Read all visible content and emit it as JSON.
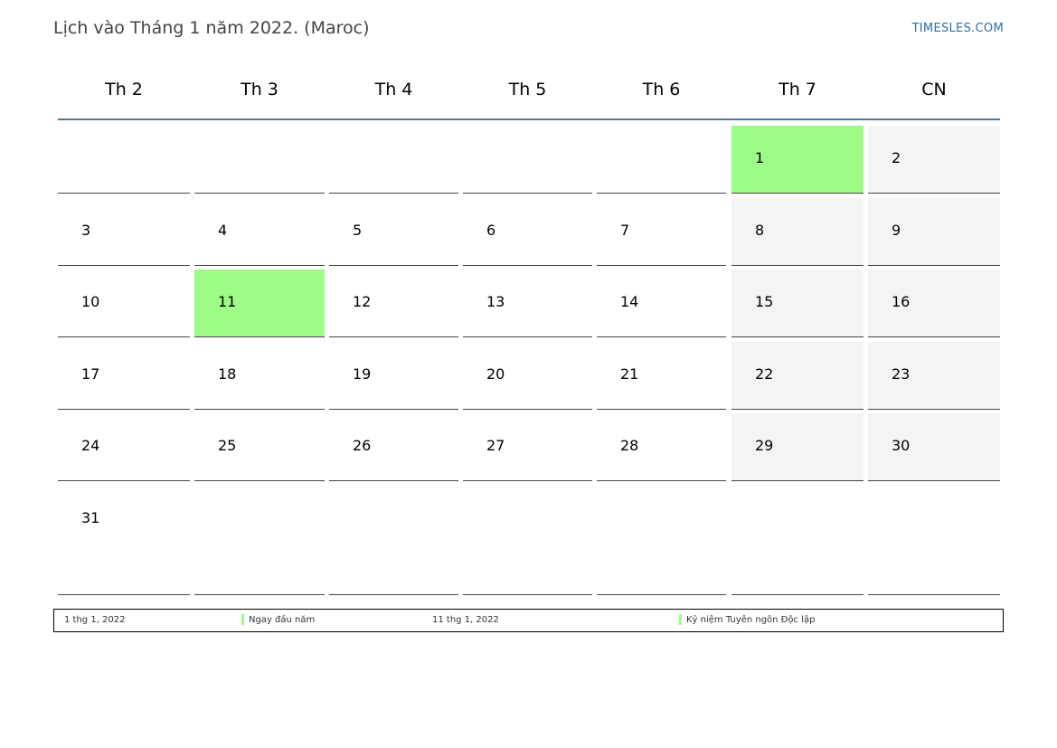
{
  "header": {
    "title": "Lịch vào Tháng 1 năm 2022. (Maroc)",
    "site": "TIMESLES.COM"
  },
  "weekdays": [
    "Th 2",
    "Th 3",
    "Th 4",
    "Th 5",
    "Th 6",
    "Th 7",
    "CN"
  ],
  "weeks": [
    [
      "",
      "",
      "",
      "",
      "",
      "1",
      "2"
    ],
    [
      "3",
      "4",
      "5",
      "6",
      "7",
      "8",
      "9"
    ],
    [
      "10",
      "11",
      "12",
      "13",
      "14",
      "15",
      "16"
    ],
    [
      "17",
      "18",
      "19",
      "20",
      "21",
      "22",
      "23"
    ],
    [
      "24",
      "25",
      "26",
      "27",
      "28",
      "29",
      "30"
    ],
    [
      "31",
      "",
      "",
      "",
      "",
      "",
      ""
    ]
  ],
  "holiday_days": [
    "1",
    "11"
  ],
  "colors": {
    "holiday": "#9cfc86",
    "weekend": "#f4f4f4",
    "header_rule": "#5b7393",
    "site_link": "#2d6fa8"
  },
  "legend": [
    {
      "date": "1 thg 1, 2022",
      "name": "Ngay đầu năm"
    },
    {
      "date": "11 thg 1, 2022",
      "name": "Kỷ niệm Tuyên ngôn Độc lập"
    }
  ]
}
